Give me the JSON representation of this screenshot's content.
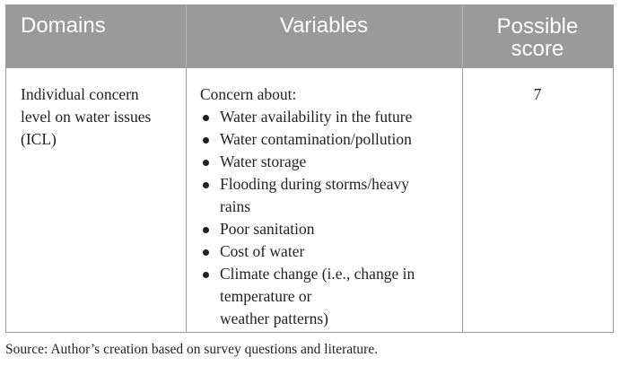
{
  "table": {
    "headers": {
      "domains": "Domains",
      "variables": "Variables",
      "score_line1": "Possible",
      "score_line2": "score"
    },
    "row": {
      "domain_line1": "Individual concern",
      "domain_line2": "level on water issues",
      "domain_line3": "(ICL)",
      "variables_intro": "Concern about:",
      "items": [
        {
          "lines": [
            "Water availability in the future"
          ]
        },
        {
          "lines": [
            "Water contamination/pollution"
          ]
        },
        {
          "lines": [
            "Water storage"
          ]
        },
        {
          "lines": [
            "Flooding during storms/heavy",
            "rains"
          ]
        },
        {
          "lines": [
            "Poor sanitation"
          ]
        },
        {
          "lines": [
            "Cost of water"
          ]
        },
        {
          "lines": [
            "Climate change (i.e., change in",
            "temperature or",
            "weather patterns)"
          ]
        }
      ],
      "score": "7"
    }
  },
  "source": "Source: Author’s creation based on survey questions and literature."
}
